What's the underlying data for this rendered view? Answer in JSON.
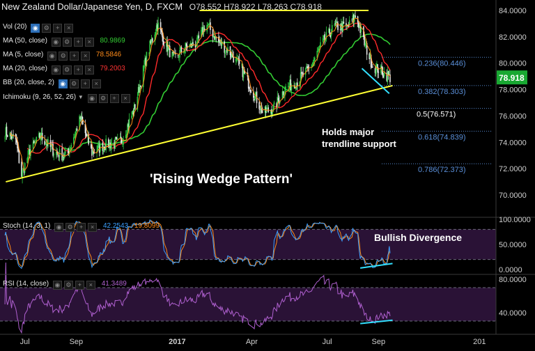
{
  "header": {
    "title": "New Zealand Dollar/Japanese Yen, D, FXCM",
    "ohlc": "O78.552  H78.922  L78.263  C78.918"
  },
  "legend": {
    "vol": "Vol (20)",
    "ma50": {
      "label": "MA (50, close)",
      "value": "80.9869",
      "color": "#33cc33"
    },
    "ma5": {
      "label": "MA (5, close)",
      "value": "78.5846",
      "color": "#ff8c1a"
    },
    "ma20": {
      "label": "MA (20, close)",
      "value": "79.2003",
      "color": "#ff2a2a"
    },
    "bb": "BB (20, close, 2)",
    "ichimoku": "Ichimoku (9, 26, 52, 26)",
    "stoch": {
      "label": "Stoch (14, 3, 1)",
      "k": "42.2543",
      "d": "19.8099"
    },
    "rsi": {
      "label": "RSI (14, close)",
      "value": "41.3489"
    }
  },
  "annotations": {
    "wedge": "'Rising Wedge Pattern'",
    "support_line1": "Holds major",
    "support_line2": "trendline support",
    "divergence": "Bullish Divergence"
  },
  "price_tag": "78.918",
  "colors": {
    "background": "#000000",
    "up": "#2ecc40",
    "down": "#e8e8e8",
    "trendline": "#ffff33",
    "cyan": "#33e0ff",
    "fib": "#5a8fd8",
    "osc_fill": "#2a1236",
    "price_tag_bg": "#19a832"
  },
  "chart_data": [
    {
      "type": "candlestick",
      "title": "New Zealand Dollar/Japanese Yen, D, FXCM",
      "ylim": [
        68.5,
        85
      ],
      "y_ticks": [
        "84.0000",
        "82.0000",
        "80.0000",
        "78.0000",
        "76.0000",
        "74.0000",
        "72.0000",
        "70.0000"
      ],
      "x_ticks": [
        "Jul",
        "Sep",
        "2017",
        "Apr",
        "Jul",
        "Sep",
        "201"
      ],
      "close_path": {
        "dates": [
          "2016-06-07",
          "2016-06-20",
          "2016-06-27",
          "2016-07-06",
          "2016-07-20",
          "2016-08-05",
          "2016-08-20",
          "2016-09-06",
          "2016-09-20",
          "2016-10-05",
          "2016-10-25",
          "2016-11-10",
          "2016-11-25",
          "2016-12-08",
          "2016-12-15",
          "2016-12-28",
          "2017-01-10",
          "2017-01-25",
          "2017-02-05",
          "2017-02-20",
          "2017-03-05",
          "2017-03-20",
          "2017-04-05",
          "2017-04-15",
          "2017-04-28",
          "2017-05-10",
          "2017-05-25",
          "2017-06-10",
          "2017-06-25",
          "2017-07-10",
          "2017-07-25",
          "2017-08-05",
          "2017-08-15",
          "2017-08-25",
          "2017-09-05",
          "2017-09-15"
        ],
        "values": [
          74.8,
          74.2,
          71.5,
          73.2,
          74.5,
          73.3,
          72.9,
          75.8,
          73.2,
          73.8,
          74.0,
          76.5,
          80.5,
          83.0,
          81.8,
          80.3,
          81.2,
          81.5,
          83.0,
          81.6,
          80.9,
          79.5,
          77.5,
          76.2,
          76.6,
          78.0,
          78.6,
          79.6,
          81.5,
          82.8,
          82.7,
          83.6,
          81.5,
          79.8,
          79.4,
          78.9
        ]
      },
      "series": [
        {
          "name": "MA (50, close)",
          "last": 80.9869,
          "color": "#33cc33"
        },
        {
          "name": "MA (5, close)",
          "last": 78.5846,
          "color": "#ff8c1a"
        },
        {
          "name": "MA (20, close)",
          "last": 79.2003,
          "color": "#ff2a2a"
        }
      ],
      "fibonacci": [
        {
          "label": "0.236(80.446)",
          "value": 80.446
        },
        {
          "label": "0.382(78.303)",
          "value": 78.303
        },
        {
          "label": "0.5(76.571)",
          "value": 76.571
        },
        {
          "label": "0.618(74.839)",
          "value": 74.839
        },
        {
          "label": "0.786(72.373)",
          "value": 72.373
        }
      ],
      "horizontal_line": 84.0,
      "trendline": {
        "from": {
          "date": "2016-06-08",
          "value": 71.0
        },
        "to": {
          "date": "2017-09-18",
          "value": 78.3
        }
      },
      "last_price": 78.918
    },
    {
      "type": "line",
      "title": "Stoch (14, 3, 1)",
      "ylim": [
        0,
        100
      ],
      "y_ticks": [
        "100.0000",
        "50.0000",
        "0.0000"
      ],
      "bands": [
        20,
        80
      ],
      "series": [
        {
          "name": "%K",
          "last": 42.2543,
          "color": "#3da0ff"
        },
        {
          "name": "%D",
          "last": 19.8099,
          "color": "#ff8c1a"
        }
      ]
    },
    {
      "type": "line",
      "title": "RSI (14, close)",
      "ylim": [
        25,
        85
      ],
      "y_ticks": [
        "80.0000",
        "40.0000"
      ],
      "bands": [
        30,
        70
      ],
      "series": [
        {
          "name": "RSI",
          "last": 41.3489,
          "color": "#b060d0"
        }
      ]
    }
  ]
}
